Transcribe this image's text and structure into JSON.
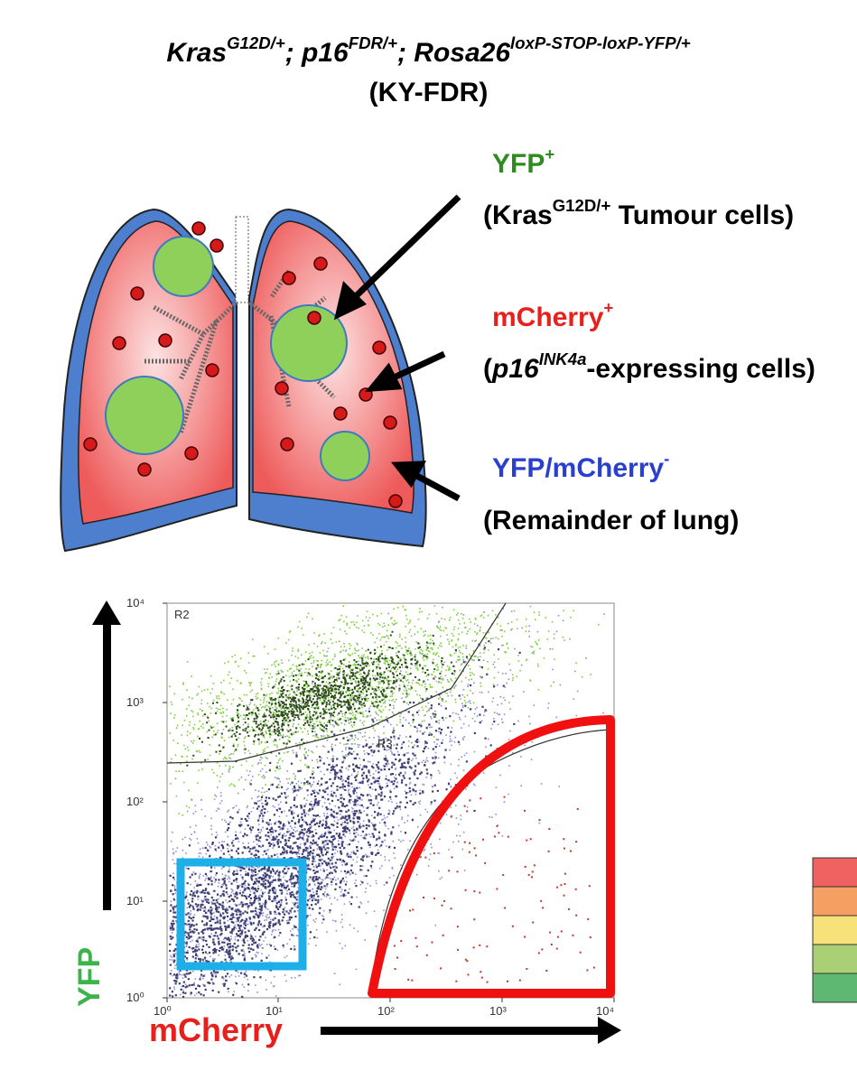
{
  "header": {
    "title_parts": [
      "Kras",
      "G12D/+",
      "; p16",
      "FDR/+",
      "; Rosa26",
      "loxP-STOP-loxP-YFP/+"
    ],
    "subtitle": "(KY-FDR)"
  },
  "labels": [
    {
      "name_parts": [
        "YFP",
        "+"
      ],
      "description_parts": [
        "(Kras",
        "G12D/+",
        " Tumour cells)"
      ]
    },
    {
      "name_parts": [
        "mCherry",
        "+"
      ],
      "description_parts": [
        "(",
        "p16",
        "INK4a",
        "-expressing cells)"
      ]
    },
    {
      "name_parts": [
        "YFP/mCherry",
        "-"
      ],
      "description": "(Remainder of lung)"
    }
  ],
  "plot": {
    "x_label": "mCherry",
    "y_label": "YFP",
    "x_ticks": [
      "10⁰",
      "10¹",
      "10²",
      "10³",
      "10⁴"
    ],
    "y_ticks": [
      "10⁰",
      "10¹",
      "10²",
      "10³",
      "10⁴"
    ],
    "gates": [
      "R2",
      "R3"
    ]
  }
}
